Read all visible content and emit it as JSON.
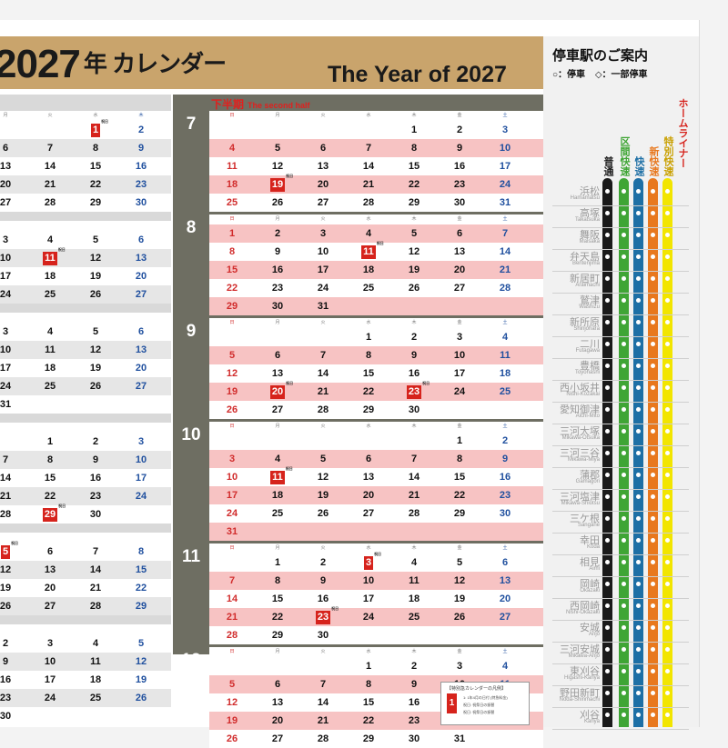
{
  "title": {
    "main": "2027",
    "suffix": "年 カレンダー",
    "english": "The Year of 2027"
  },
  "half_label": {
    "jp": "下半期",
    "en": "The second half"
  },
  "stations_panel": {
    "title": "停車駅のご案内",
    "legend_stop": "○：停車",
    "legend_partial": "◇：一部停車",
    "lines": [
      {
        "name": "普通",
        "color": "#1a1a1a"
      },
      {
        "name": "区間快速",
        "color": "#3fa535"
      },
      {
        "name": "快速",
        "color": "#1d6fa5"
      },
      {
        "name": "新快速",
        "color": "#e8781e"
      },
      {
        "name": "特別快速",
        "color": "#f2e500"
      },
      {
        "name": "ホームライナー",
        "color": "#d6231c"
      }
    ],
    "stations": [
      {
        "jp": "浜松",
        "ro": "Hamamatsu"
      },
      {
        "jp": "高塚",
        "ro": "Takatsuka"
      },
      {
        "jp": "舞阪",
        "ro": "Maisaka"
      },
      {
        "jp": "弁天島",
        "ro": "Bentenjima"
      },
      {
        "jp": "新居町",
        "ro": "Araimachi"
      },
      {
        "jp": "鷲津",
        "ro": "Washizu"
      },
      {
        "jp": "新所原",
        "ro": "Shinjohara"
      },
      {
        "jp": "二川",
        "ro": "Futagawa"
      },
      {
        "jp": "豊橋",
        "ro": "Toyohashi"
      },
      {
        "jp": "西小坂井",
        "ro": "Nishi-Kozakai"
      },
      {
        "jp": "愛知御津",
        "ro": "Aichi-Mito"
      },
      {
        "jp": "三河大塚",
        "ro": "Mikawa-Ōtsuka"
      },
      {
        "jp": "三河三谷",
        "ro": "Mikawa-Miya"
      },
      {
        "jp": "蒲郡",
        "ro": "Gamagōri"
      },
      {
        "jp": "三河塩津",
        "ro": "Mikawa-Shiotsu"
      },
      {
        "jp": "三ケ根",
        "ro": "Sangane"
      },
      {
        "jp": "幸田",
        "ro": "Kōda"
      },
      {
        "jp": "相見",
        "ro": "Aimi"
      },
      {
        "jp": "岡崎",
        "ro": "Okazaki"
      },
      {
        "jp": "西岡崎",
        "ro": "Nishi-Okazaki"
      },
      {
        "jp": "安城",
        "ro": "Anjō"
      },
      {
        "jp": "三河安城",
        "ro": "Mikawa-Anjō"
      },
      {
        "jp": "東刈谷",
        "ro": "Higashi-Kariya"
      },
      {
        "jp": "野田新町",
        "ro": "Noda-Shinmachi"
      },
      {
        "jp": "刈谷",
        "ro": "Kariya"
      }
    ]
  },
  "legend_note": {
    "title": "【特別急カレンダーの凡例】",
    "sample_day": "1",
    "sample_tag": "祝日",
    "lines": [
      "1: 1年4月の日付 (特急料金)",
      "祝日: 祝祭日の振替",
      "祝日: 祝祭日の振替"
    ]
  },
  "left_months": [
    {
      "top": 0,
      "rows": [
        {
          "t": "dow",
          "c": [
            "",
            "",
            "月",
            "火",
            "水",
            "木",
            "金"
          ]
        },
        {
          "t": "w",
          "c": [
            "",
            "",
            "",
            "",
            "",
            "1",
            "2"
          ]
        },
        {
          "t": "g",
          "c": [
            "",
            "",
            "6",
            "7",
            "8",
            "9",
            ""
          ]
        },
        {
          "t": "w",
          "c": [
            "",
            "",
            "13",
            "14",
            "15",
            "16",
            ""
          ]
        },
        {
          "t": "g",
          "c": [
            "",
            "",
            "20",
            "21",
            "22",
            "23",
            ""
          ]
        },
        {
          "t": "w",
          "c": [
            "",
            "",
            "27",
            "28",
            "29",
            "30",
            ""
          ]
        }
      ]
    }
  ],
  "right_months": [
    {
      "num": "7",
      "rows": [
        {
          "t": "dow",
          "c": [
            "日",
            "月",
            "火",
            "水",
            "木",
            "金",
            "土"
          ]
        },
        {
          "t": "w",
          "c": [
            "",
            "",
            "",
            "",
            "1",
            "2",
            "3"
          ]
        },
        {
          "t": "p",
          "c": [
            "4",
            "5",
            "6",
            "7",
            "8",
            "9",
            "10"
          ]
        },
        {
          "t": "w",
          "c": [
            "11",
            "12",
            "13",
            "14",
            "15",
            "16",
            "17"
          ]
        },
        {
          "t": "p",
          "c": [
            "18",
            "19",
            "20",
            "21",
            "22",
            "23",
            "24"
          ]
        },
        {
          "t": "w",
          "c": [
            "25",
            "26",
            "27",
            "28",
            "29",
            "30",
            "31"
          ]
        }
      ]
    },
    {
      "num": "8",
      "rows": [
        {
          "t": "dow",
          "c": [
            "日",
            "月",
            "火",
            "水",
            "木",
            "金",
            "土"
          ]
        },
        {
          "t": "p",
          "c": [
            "1",
            "2",
            "3",
            "4",
            "5",
            "6",
            "7"
          ]
        },
        {
          "t": "w",
          "c": [
            "8",
            "9",
            "10",
            "11",
            "12",
            "13",
            "14"
          ]
        },
        {
          "t": "p",
          "c": [
            "15",
            "16",
            "17",
            "18",
            "19",
            "20",
            "21"
          ]
        },
        {
          "t": "w",
          "c": [
            "22",
            "23",
            "24",
            "25",
            "26",
            "27",
            "28"
          ]
        },
        {
          "t": "p",
          "c": [
            "29",
            "30",
            "31",
            "",
            "",
            "",
            ""
          ]
        }
      ]
    },
    {
      "num": "9",
      "rows": [
        {
          "t": "dow",
          "c": [
            "日",
            "月",
            "火",
            "水",
            "木",
            "金",
            "土"
          ]
        },
        {
          "t": "w",
          "c": [
            "",
            "",
            "",
            "1",
            "2",
            "3",
            "4"
          ]
        },
        {
          "t": "p",
          "c": [
            "5",
            "6",
            "7",
            "8",
            "9",
            "10",
            "11"
          ]
        },
        {
          "t": "w",
          "c": [
            "12",
            "13",
            "14",
            "15",
            "16",
            "17",
            "18"
          ]
        },
        {
          "t": "p",
          "c": [
            "19",
            "20",
            "21",
            "22",
            "23",
            "24",
            "25"
          ]
        },
        {
          "t": "w",
          "c": [
            "26",
            "27",
            "28",
            "29",
            "30",
            "",
            ""
          ]
        }
      ]
    },
    {
      "num": "10",
      "rows": [
        {
          "t": "dow",
          "c": [
            "日",
            "月",
            "火",
            "水",
            "木",
            "金",
            "土"
          ]
        },
        {
          "t": "w",
          "c": [
            "",
            "",
            "",
            "",
            "",
            "1",
            "2"
          ]
        },
        {
          "t": "p",
          "c": [
            "3",
            "4",
            "5",
            "6",
            "7",
            "8",
            "9"
          ]
        },
        {
          "t": "w",
          "c": [
            "10",
            "11",
            "12",
            "13",
            "14",
            "15",
            "16"
          ]
        },
        {
          "t": "p",
          "c": [
            "17",
            "18",
            "19",
            "20",
            "21",
            "22",
            "23"
          ]
        },
        {
          "t": "w",
          "c": [
            "24",
            "25",
            "26",
            "27",
            "28",
            "29",
            "30"
          ]
        },
        {
          "t": "p",
          "c": [
            "31",
            "",
            "",
            "",
            "",
            "",
            ""
          ]
        }
      ]
    },
    {
      "num": "11",
      "rows": [
        {
          "t": "dow",
          "c": [
            "日",
            "月",
            "火",
            "水",
            "木",
            "金",
            "土"
          ]
        },
        {
          "t": "w",
          "c": [
            "",
            "1",
            "2",
            "3",
            "4",
            "5",
            "6"
          ]
        },
        {
          "t": "p",
          "c": [
            "7",
            "8",
            "9",
            "10",
            "11",
            "12",
            "13"
          ]
        },
        {
          "t": "w",
          "c": [
            "14",
            "15",
            "16",
            "17",
            "18",
            "19",
            "20"
          ]
        },
        {
          "t": "p",
          "c": [
            "21",
            "22",
            "23",
            "24",
            "25",
            "26",
            "27"
          ]
        },
        {
          "t": "w",
          "c": [
            "28",
            "29",
            "30",
            "",
            "",
            "",
            ""
          ]
        }
      ]
    },
    {
      "num": "12",
      "rows": [
        {
          "t": "dow",
          "c": [
            "日",
            "月",
            "火",
            "水",
            "木",
            "金",
            "土"
          ]
        },
        {
          "t": "w",
          "c": [
            "",
            "",
            "",
            "1",
            "2",
            "3",
            "4"
          ]
        },
        {
          "t": "p",
          "c": [
            "5",
            "6",
            "7",
            "8",
            "9",
            "10",
            "11"
          ]
        },
        {
          "t": "w",
          "c": [
            "12",
            "13",
            "14",
            "15",
            "16",
            "17",
            "18"
          ]
        },
        {
          "t": "p",
          "c": [
            "19",
            "20",
            "21",
            "22",
            "23",
            "24",
            "25"
          ]
        },
        {
          "t": "w",
          "c": [
            "26",
            "27",
            "28",
            "29",
            "30",
            "31",
            ""
          ]
        }
      ]
    }
  ],
  "left_blocks": [
    {
      "rows": [
        {
          "t": "dow",
          "c": [
            "月",
            "火",
            "水",
            "木",
            "金"
          ]
        },
        {
          "t": "w",
          "c": [
            "",
            "",
            "1",
            "2",
            ""
          ]
        },
        {
          "t": "g",
          "c": [
            "6",
            "7",
            "8",
            "9",
            ""
          ]
        },
        {
          "t": "w",
          "c": [
            "13",
            "14",
            "15",
            "16",
            ""
          ]
        },
        {
          "t": "g",
          "c": [
            "20",
            "21",
            "22",
            "23",
            ""
          ]
        },
        {
          "t": "w",
          "c": [
            "27",
            "28",
            "29",
            "30",
            ""
          ]
        }
      ]
    },
    {
      "rows": [
        {
          "t": "dow",
          "c": [
            "",
            "",
            "",
            "",
            ""
          ]
        },
        {
          "t": "w",
          "c": [
            "3",
            "4",
            "5",
            "6",
            ""
          ]
        },
        {
          "t": "g",
          "c": [
            "10",
            "11",
            "12",
            "13",
            ""
          ]
        },
        {
          "t": "w",
          "c": [
            "17",
            "18",
            "19",
            "20",
            ""
          ]
        },
        {
          "t": "g",
          "c": [
            "24",
            "25",
            "26",
            "27",
            ""
          ]
        }
      ]
    },
    {
      "rows": [
        {
          "t": "dow",
          "c": [
            "",
            "",
            "",
            "",
            ""
          ]
        },
        {
          "t": "w",
          "c": [
            "3",
            "4",
            "5",
            "6",
            ""
          ]
        },
        {
          "t": "g",
          "c": [
            "10",
            "11",
            "12",
            "13",
            ""
          ]
        },
        {
          "t": "w",
          "c": [
            "17",
            "18",
            "19",
            "20",
            ""
          ]
        },
        {
          "t": "g",
          "c": [
            "24",
            "25",
            "26",
            "27",
            ""
          ]
        },
        {
          "t": "w",
          "c": [
            "31",
            "",
            "",
            "",
            ""
          ]
        }
      ]
    },
    {
      "rows": [
        {
          "t": "dow",
          "c": [
            "",
            "",
            "",
            "",
            ""
          ]
        },
        {
          "t": "w",
          "c": [
            "",
            "1",
            "2",
            "3",
            ""
          ]
        },
        {
          "t": "g",
          "c": [
            "7",
            "8",
            "9",
            "10",
            ""
          ]
        },
        {
          "t": "w",
          "c": [
            "14",
            "15",
            "16",
            "17",
            ""
          ]
        },
        {
          "t": "g",
          "c": [
            "21",
            "22",
            "23",
            "24",
            ""
          ]
        },
        {
          "t": "w",
          "c": [
            "28",
            "29",
            "30",
            "",
            ""
          ]
        }
      ]
    },
    {
      "rows": [
        {
          "t": "dow",
          "c": [
            "",
            "",
            "",
            "",
            ""
          ]
        },
        {
          "t": "w",
          "c": [
            "5",
            "6",
            "7",
            "8",
            ""
          ]
        },
        {
          "t": "g",
          "c": [
            "12",
            "13",
            "14",
            "15",
            ""
          ]
        },
        {
          "t": "w",
          "c": [
            "19",
            "20",
            "21",
            "22",
            ""
          ]
        },
        {
          "t": "g",
          "c": [
            "26",
            "27",
            "28",
            "29",
            ""
          ]
        }
      ]
    },
    {
      "rows": [
        {
          "t": "dow",
          "c": [
            "",
            "",
            "",
            "",
            ""
          ]
        },
        {
          "t": "w",
          "c": [
            "2",
            "3",
            "4",
            "5",
            ""
          ]
        },
        {
          "t": "g",
          "c": [
            "9",
            "10",
            "11",
            "12",
            ""
          ]
        },
        {
          "t": "w",
          "c": [
            "16",
            "17",
            "18",
            "19",
            ""
          ]
        },
        {
          "t": "g",
          "c": [
            "23",
            "24",
            "25",
            "26",
            ""
          ]
        },
        {
          "t": "w",
          "c": [
            "30",
            "",
            "",
            "",
            ""
          ]
        }
      ]
    }
  ],
  "holidays_right": {
    "7-19": "祝日",
    "8-11": "祝日",
    "9-20": "祝日",
    "9-23": "祝日",
    "10-11": "祝日",
    "11-3": "祝日",
    "11-23": "祝日"
  },
  "holidays_left": {
    "0-1": "祝日",
    "1-11": "祝日",
    "3-29": "祝日",
    "4-5": "祝日"
  }
}
